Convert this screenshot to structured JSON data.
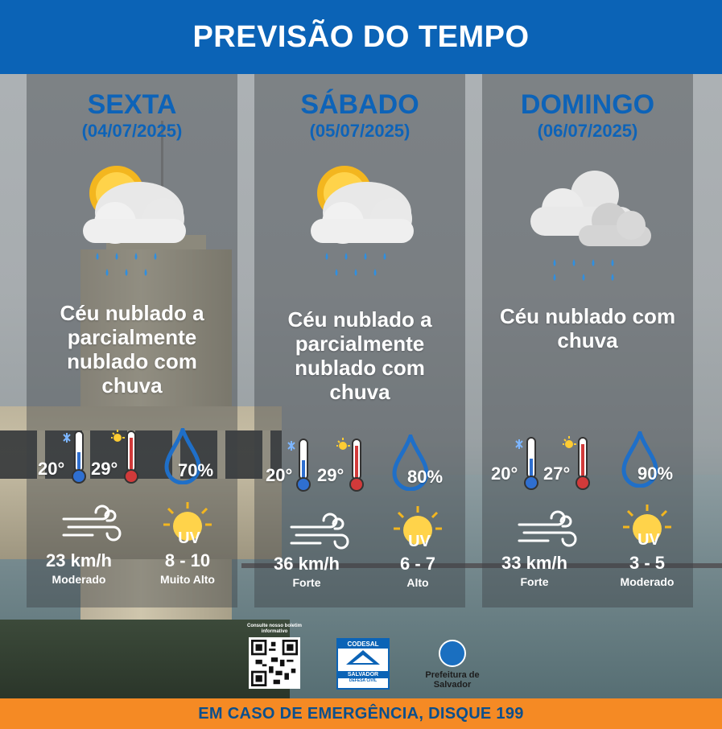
{
  "header": {
    "title": "PREVISÃO DO TEMPO"
  },
  "footer": {
    "text": "EM CASO DE EMERGÊNCIA, DISQUE 199"
  },
  "colors": {
    "header_bg": "#0b63b6",
    "footer_bg": "#f58a24",
    "day_text": "#0d63b8"
  },
  "days": [
    {
      "name": "SEXTA",
      "date": "(04/07/2025)",
      "icon": "sun-cloud-rain-icon",
      "description": "Céu nublado a parcialmente nublado com chuva",
      "temp_min": "20°",
      "temp_max": "29°",
      "humidity": "70%",
      "wind_speed": "23 km/h",
      "wind_label": "Moderado",
      "uv_label_icon": "UV",
      "uv_index": "8 - 10",
      "uv_label": "Muito Alto"
    },
    {
      "name": "SÁBADO",
      "date": "(05/07/2025)",
      "icon": "sun-cloud-rain-icon",
      "description": "Céu nublado a parcialmente nublado com chuva",
      "temp_min": "20°",
      "temp_max": "29°",
      "humidity": "80%",
      "wind_speed": "36 km/h",
      "wind_label": "Forte",
      "uv_label_icon": "UV",
      "uv_index": "6 - 7",
      "uv_label": "Alto"
    },
    {
      "name": "DOMINGO",
      "date": "(06/07/2025)",
      "icon": "cloud-rain-icon",
      "description": "Céu nublado com chuva",
      "temp_min": "20°",
      "temp_max": "27°",
      "humidity": "90%",
      "wind_speed": "33 km/h",
      "wind_label": "Forte",
      "uv_label_icon": "UV",
      "uv_index": "3 - 5",
      "uv_label": "Moderado"
    }
  ],
  "logos": {
    "qr_caption": "Consulte nosso boletim informativo",
    "codesal_name": "CODESAL",
    "codesal_city": "SALVADOR",
    "codesal_sub": "DEFESA CIVIL",
    "prefeitura": "Prefeitura de Salvador"
  }
}
